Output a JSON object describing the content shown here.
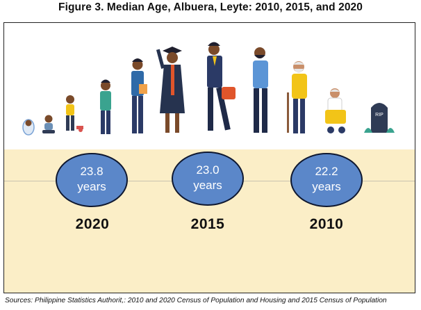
{
  "title": "Figure 3. Median Age, Albuera, Leyte: 2010, 2015, and 2020",
  "figures": [
    {
      "value": "23.8",
      "unit": "years",
      "year": "2020"
    },
    {
      "value": "23.0",
      "unit": "years",
      "year": "2015"
    },
    {
      "value": "22.2",
      "unit": "years",
      "year": "2010"
    }
  ],
  "source": "Sources: Philippine Statistics Authorit,: 2010 and 2020 Census of Population and Housing and 2015 Census of Population",
  "colors": {
    "band": "#fbeec7",
    "circle": "#5b87c9",
    "circle_border": "#0f1830"
  },
  "illustration": {
    "tombstone_text": "RIP"
  }
}
